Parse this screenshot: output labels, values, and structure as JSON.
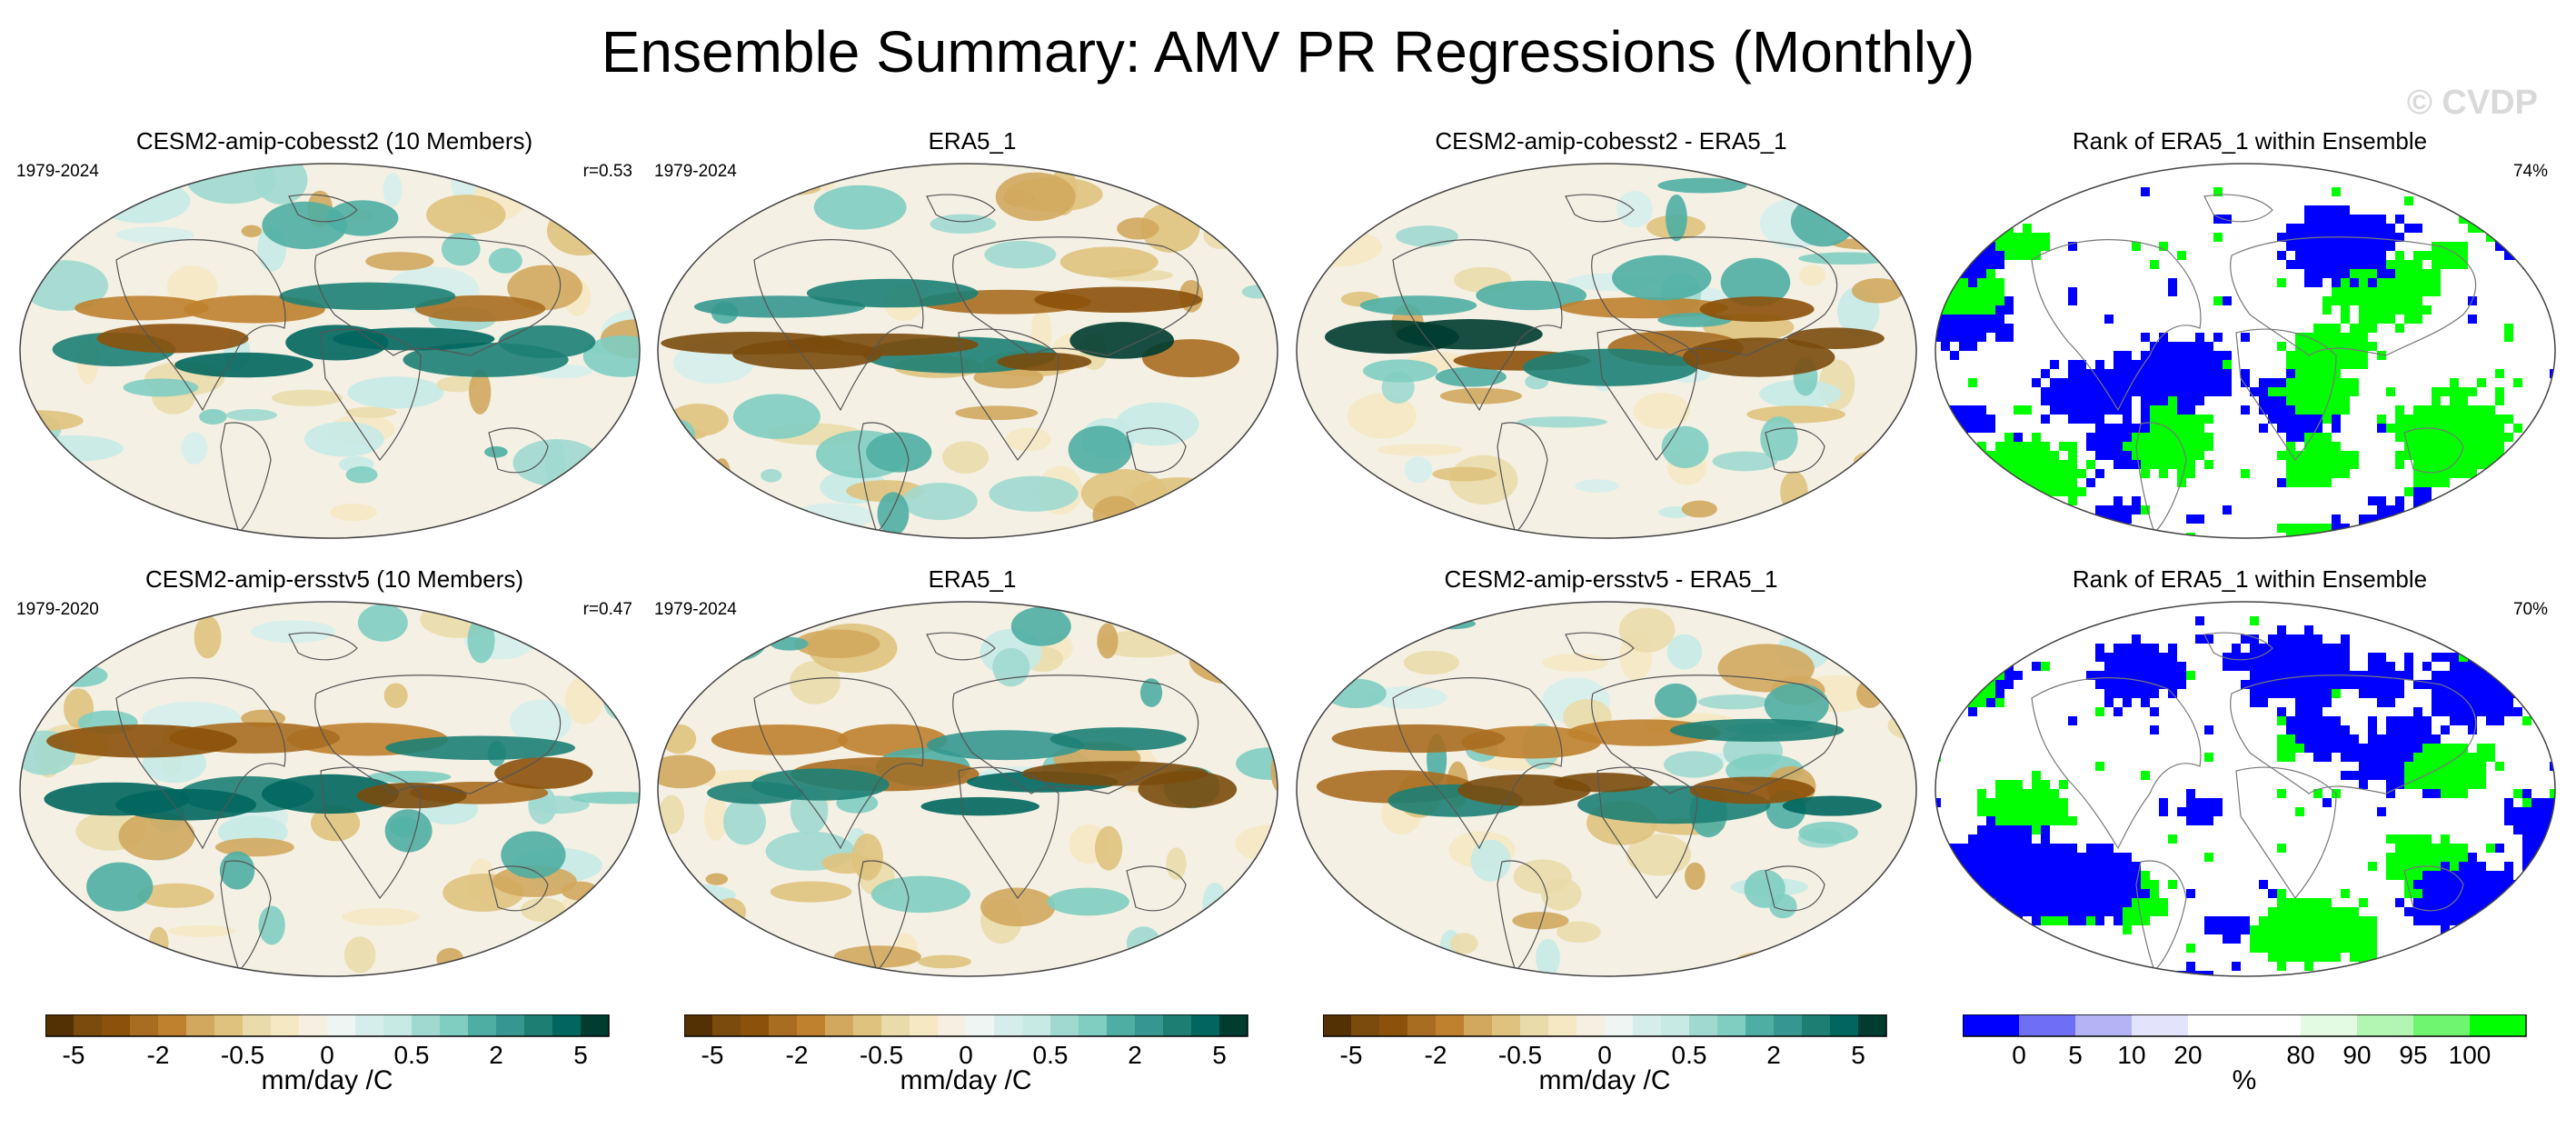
{
  "figure": {
    "title": "Ensemble Summary: AMV PR Regressions (Monthly)",
    "watermark": "© CVDP"
  },
  "chart_data": [
    {
      "type": "heatmap",
      "row": 1,
      "col": 1,
      "title": "CESM2-amip-cobesst2 (10 Members)",
      "period": "1979-2024",
      "stat": "r=0.53",
      "projection": "Robinson",
      "variable": "PR regression onto AMV",
      "units": "mm/day /C",
      "colormap": "brown-white-teal"
    },
    {
      "type": "heatmap",
      "row": 1,
      "col": 2,
      "title": "ERA5_1",
      "period": "1979-2024",
      "stat": "",
      "projection": "Robinson",
      "units": "mm/day /C",
      "colormap": "brown-white-teal"
    },
    {
      "type": "heatmap",
      "row": 1,
      "col": 3,
      "title": "CESM2-amip-cobesst2 - ERA5_1",
      "period": "",
      "stat": "",
      "projection": "Robinson",
      "units": "mm/day /C",
      "colormap": "brown-white-teal"
    },
    {
      "type": "heatmap",
      "row": 1,
      "col": 4,
      "title": "Rank of ERA5_1 within Ensemble",
      "period": "",
      "stat": "74%",
      "projection": "Robinson",
      "units": "%",
      "colormap": "blue-white-green"
    },
    {
      "type": "heatmap",
      "row": 2,
      "col": 1,
      "title": "CESM2-amip-ersstv5 (10 Members)",
      "period": "1979-2020",
      "stat": "r=0.47",
      "projection": "Robinson",
      "units": "mm/day /C",
      "colormap": "brown-white-teal"
    },
    {
      "type": "heatmap",
      "row": 2,
      "col": 2,
      "title": "ERA5_1",
      "period": "1979-2024",
      "stat": "",
      "projection": "Robinson",
      "units": "mm/day /C",
      "colormap": "brown-white-teal"
    },
    {
      "type": "heatmap",
      "row": 2,
      "col": 3,
      "title": "CESM2-amip-ersstv5 - ERA5_1",
      "period": "",
      "stat": "",
      "projection": "Robinson",
      "units": "mm/day /C",
      "colormap": "brown-white-teal"
    },
    {
      "type": "heatmap",
      "row": 2,
      "col": 4,
      "title": "Rank of ERA5_1 within Ensemble",
      "period": "",
      "stat": "70%",
      "projection": "Robinson",
      "units": "%",
      "colormap": "blue-white-green"
    }
  ],
  "colorbars": [
    {
      "label": "mm/day /C",
      "ticks": [
        "-5",
        "-2",
        "-0.5",
        "0",
        "0.5",
        "2",
        "5"
      ],
      "colors": [
        "#543005",
        "#7a4b0d",
        "#8c510a",
        "#a86d20",
        "#bf812d",
        "#d2a85e",
        "#dfc27d",
        "#eadcaa",
        "#f6e8c3",
        "#f5f0e1",
        "#eef5f3",
        "#d6eeeb",
        "#c7eae5",
        "#a0d9cf",
        "#80cdc1",
        "#4faea3",
        "#35978f",
        "#1d7f74",
        "#01665e",
        "#003c30"
      ]
    },
    {
      "label": "mm/day /C",
      "ticks": [
        "-5",
        "-2",
        "-0.5",
        "0",
        "0.5",
        "2",
        "5"
      ],
      "colors": [
        "#543005",
        "#7a4b0d",
        "#8c510a",
        "#a86d20",
        "#bf812d",
        "#d2a85e",
        "#dfc27d",
        "#eadcaa",
        "#f6e8c3",
        "#f5f0e1",
        "#eef5f3",
        "#d6eeeb",
        "#c7eae5",
        "#a0d9cf",
        "#80cdc1",
        "#4faea3",
        "#35978f",
        "#1d7f74",
        "#01665e",
        "#003c30"
      ]
    },
    {
      "label": "mm/day /C",
      "ticks": [
        "-5",
        "-2",
        "-0.5",
        "0",
        "0.5",
        "2",
        "5"
      ],
      "colors": [
        "#543005",
        "#7a4b0d",
        "#8c510a",
        "#a86d20",
        "#bf812d",
        "#d2a85e",
        "#dfc27d",
        "#eadcaa",
        "#f6e8c3",
        "#f5f0e1",
        "#eef5f3",
        "#d6eeeb",
        "#c7eae5",
        "#a0d9cf",
        "#80cdc1",
        "#4faea3",
        "#35978f",
        "#1d7f74",
        "#01665e",
        "#003c30"
      ]
    },
    {
      "label": "%",
      "ticks": [
        "0",
        "5",
        "10",
        "20",
        "80",
        "90",
        "95",
        "100"
      ],
      "colors": [
        "#0000ff",
        "#6f6ff5",
        "#b3b3f5",
        "#e3e3fb",
        "#ffffff",
        "#ffffff",
        "#e3fbe3",
        "#b3f5b3",
        "#6ff56f",
        "#00ff00"
      ]
    }
  ]
}
